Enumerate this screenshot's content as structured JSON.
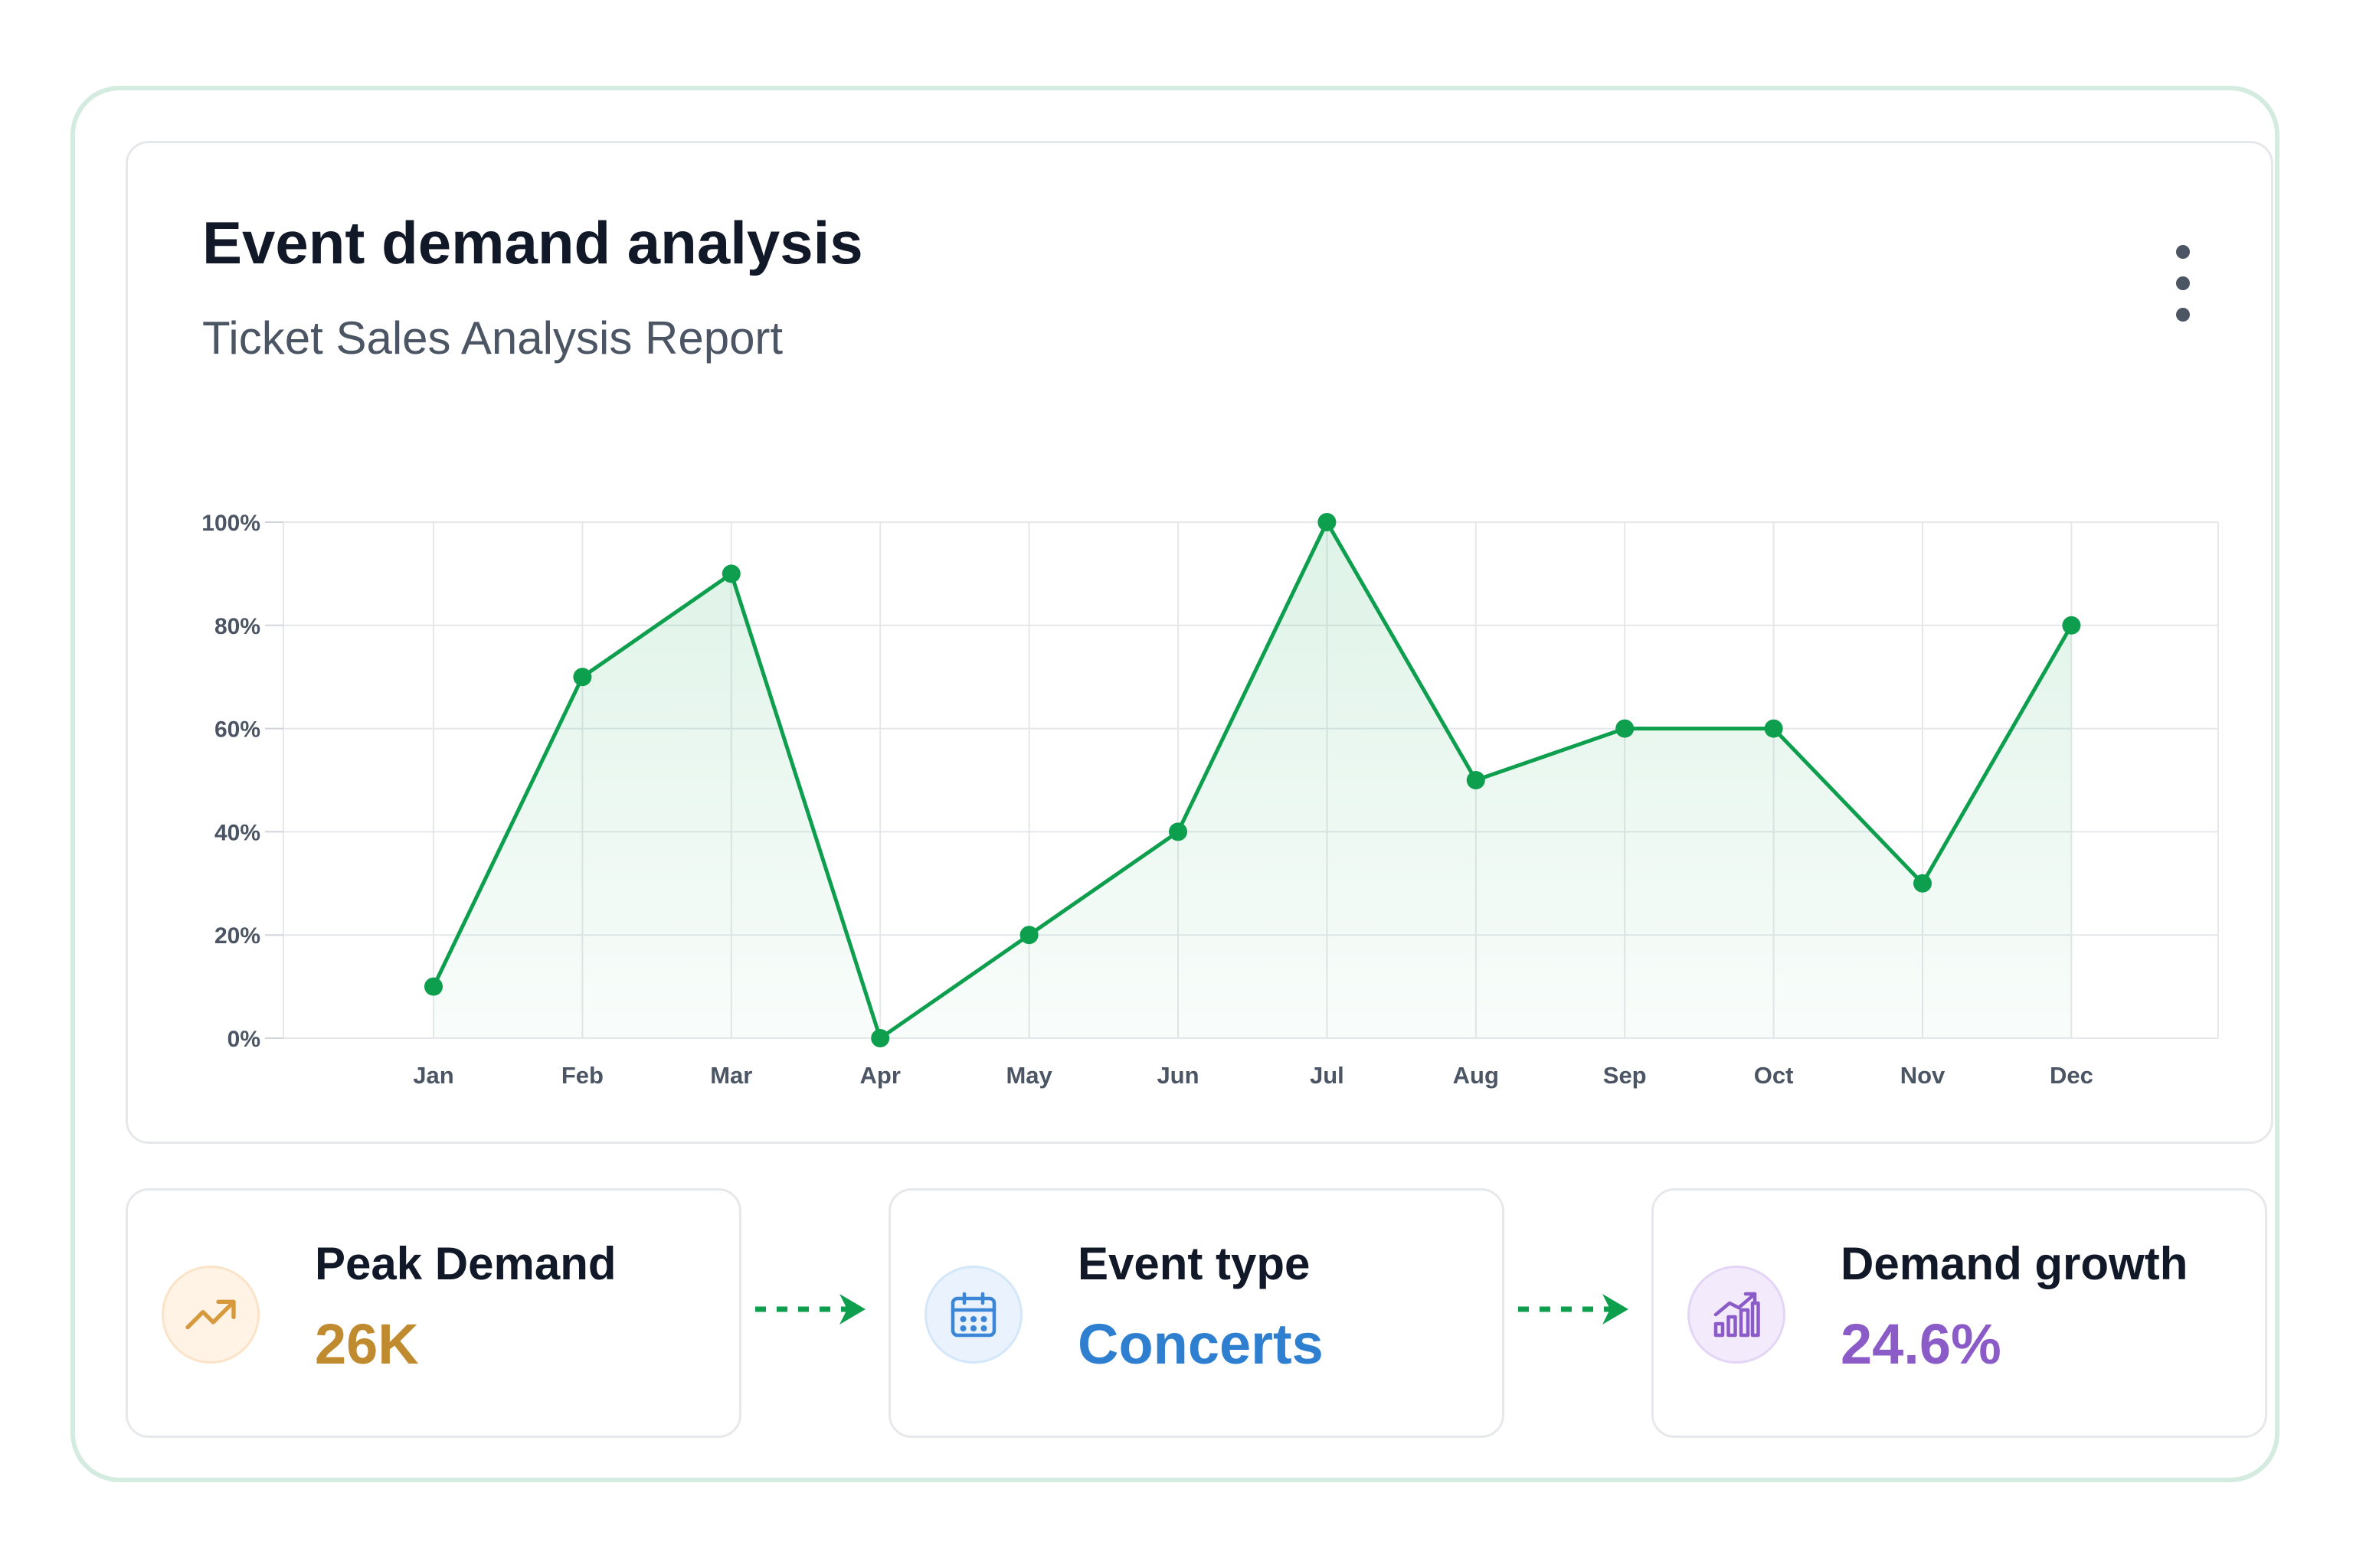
{
  "header": {
    "title": "Event demand analysis",
    "subtitle": "Ticket Sales Analysis Report"
  },
  "chart_data": {
    "type": "area",
    "categories": [
      "Jan",
      "Feb",
      "Mar",
      "Apr",
      "May",
      "Jun",
      "Jul",
      "Aug",
      "Sep",
      "Oct",
      "Nov",
      "Dec"
    ],
    "values": [
      10,
      70,
      90,
      0,
      20,
      40,
      100,
      50,
      60,
      60,
      30,
      80
    ],
    "y_ticks": [
      0,
      20,
      40,
      60,
      80,
      100
    ],
    "y_tick_format": "%",
    "ylim": [
      0,
      100
    ],
    "grid": true,
    "legend": "none",
    "line_color": "#0e9f4e",
    "fill_color": "#2fb36a"
  },
  "stats": [
    {
      "label": "Peak Demand",
      "value": "26K",
      "icon": "trending-up-icon",
      "color": "#c08a2e",
      "icon_bg": "#fff3e6",
      "icon_border": "#fbe3c8"
    },
    {
      "label": "Event type",
      "value": "Concerts",
      "icon": "calendar-icon",
      "color": "#2f7fd1",
      "icon_bg": "#eaf3fd",
      "icon_border": "#d3e6fa"
    },
    {
      "label": "Demand growth",
      "value": "24.6%",
      "icon": "bar-chart-growth-icon",
      "color": "#8b5cc7",
      "icon_bg": "#f3ebfc",
      "icon_border": "#e4d5f7"
    }
  ],
  "connector_color": "#0e9f4e"
}
